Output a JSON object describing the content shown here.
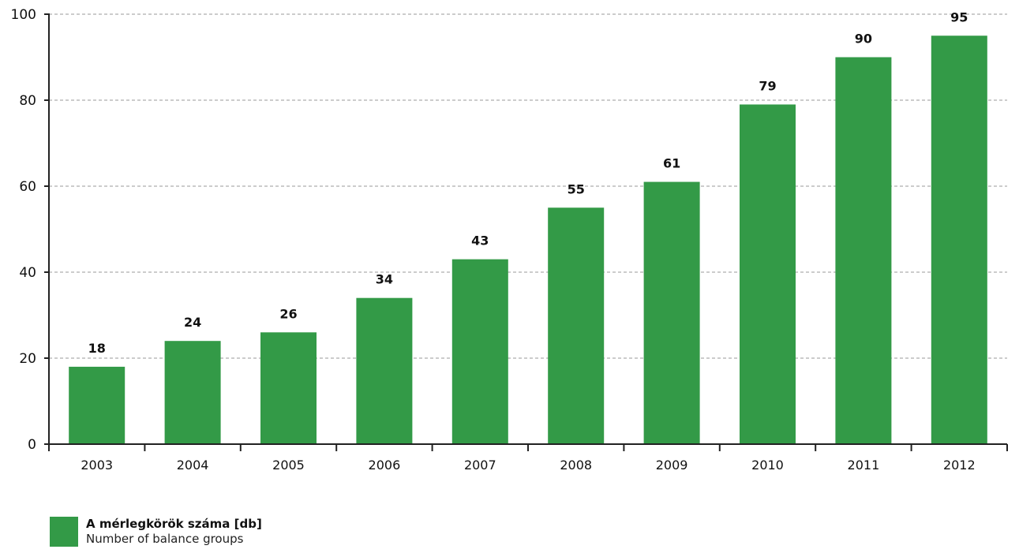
{
  "chart_data": {
    "type": "bar",
    "categories": [
      "2003",
      "2004",
      "2005",
      "2006",
      "2007",
      "2008",
      "2009",
      "2010",
      "2011",
      "2012"
    ],
    "series": [
      {
        "name": "A mérlegkörök száma [db]",
        "values": [
          18,
          24,
          26,
          34,
          43,
          55,
          61,
          79,
          90,
          95
        ]
      }
    ],
    "data_labels": [
      "18",
      "24",
      "26",
      "34",
      "43",
      "55",
      "61",
      "79",
      "90",
      "95"
    ],
    "ylim": [
      0,
      100
    ],
    "yticks": [
      0,
      20,
      40,
      60,
      80,
      100
    ],
    "ytick_labels": [
      "0",
      "20",
      "40",
      "60",
      "80",
      "100"
    ],
    "grid": "horizontal dashed",
    "legend_placement": "bottom-left",
    "xlabel": "",
    "ylabel": ""
  },
  "legend": {
    "label_hu": "A mérlegkörök száma [db]",
    "label_en": "Number of balance groups"
  },
  "colors": {
    "bar": "#339a47",
    "axis": "#222222",
    "grid": "#9a9a9a",
    "text": "#111111"
  }
}
